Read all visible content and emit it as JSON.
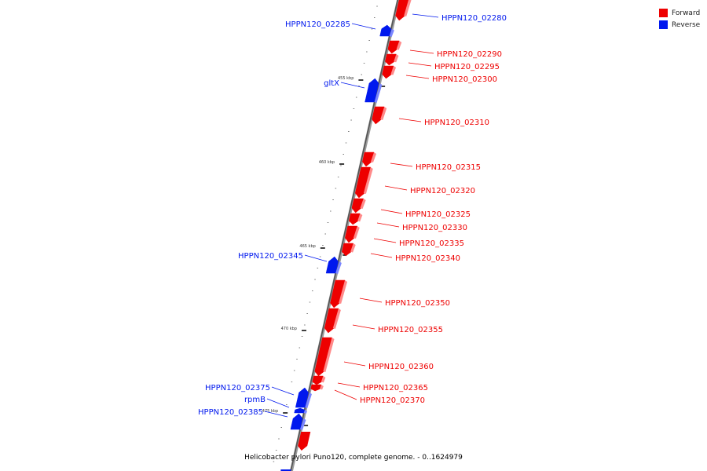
{
  "legend": {
    "forward_label": "Forward",
    "reverse_label": "Reverse",
    "forward_color": "#ee0000",
    "reverse_color": "#0018ee"
  },
  "caption": "Helicobacter pylori Puno120, complete genome. - 0..1624979",
  "ruler": [
    "455 kbp",
    "460 kbp",
    "465 kbp",
    "470 kbp",
    "475 kbp"
  ],
  "genes": [
    {
      "name": "HPPN120_02280",
      "strand": "forward",
      "label_color": "#0018ee"
    },
    {
      "name": "HPPN120_02285",
      "strand": "reverse"
    },
    {
      "name": "HPPN120_02290",
      "strand": "forward"
    },
    {
      "name": "HPPN120_02295",
      "strand": "forward"
    },
    {
      "name": "HPPN120_02300",
      "strand": "forward"
    },
    {
      "name": "gltX",
      "strand": "reverse"
    },
    {
      "name": "HPPN120_02310",
      "strand": "forward"
    },
    {
      "name": "HPPN120_02315",
      "strand": "forward"
    },
    {
      "name": "HPPN120_02320",
      "strand": "forward"
    },
    {
      "name": "HPPN120_02325",
      "strand": "forward"
    },
    {
      "name": "HPPN120_02330",
      "strand": "forward"
    },
    {
      "name": "HPPN120_02335",
      "strand": "forward"
    },
    {
      "name": "HPPN120_02340",
      "strand": "forward"
    },
    {
      "name": "HPPN120_02345",
      "strand": "reverse"
    },
    {
      "name": "HPPN120_02350",
      "strand": "forward"
    },
    {
      "name": "HPPN120_02355",
      "strand": "forward"
    },
    {
      "name": "HPPN120_02360",
      "strand": "forward"
    },
    {
      "name": "HPPN120_02365",
      "strand": "forward"
    },
    {
      "name": "HPPN120_02370",
      "strand": "forward"
    },
    {
      "name": "HPPN120_02375",
      "strand": "reverse"
    },
    {
      "name": "rpmB",
      "strand": "reverse"
    },
    {
      "name": "HPPN120_02385",
      "strand": "reverse"
    }
  ]
}
